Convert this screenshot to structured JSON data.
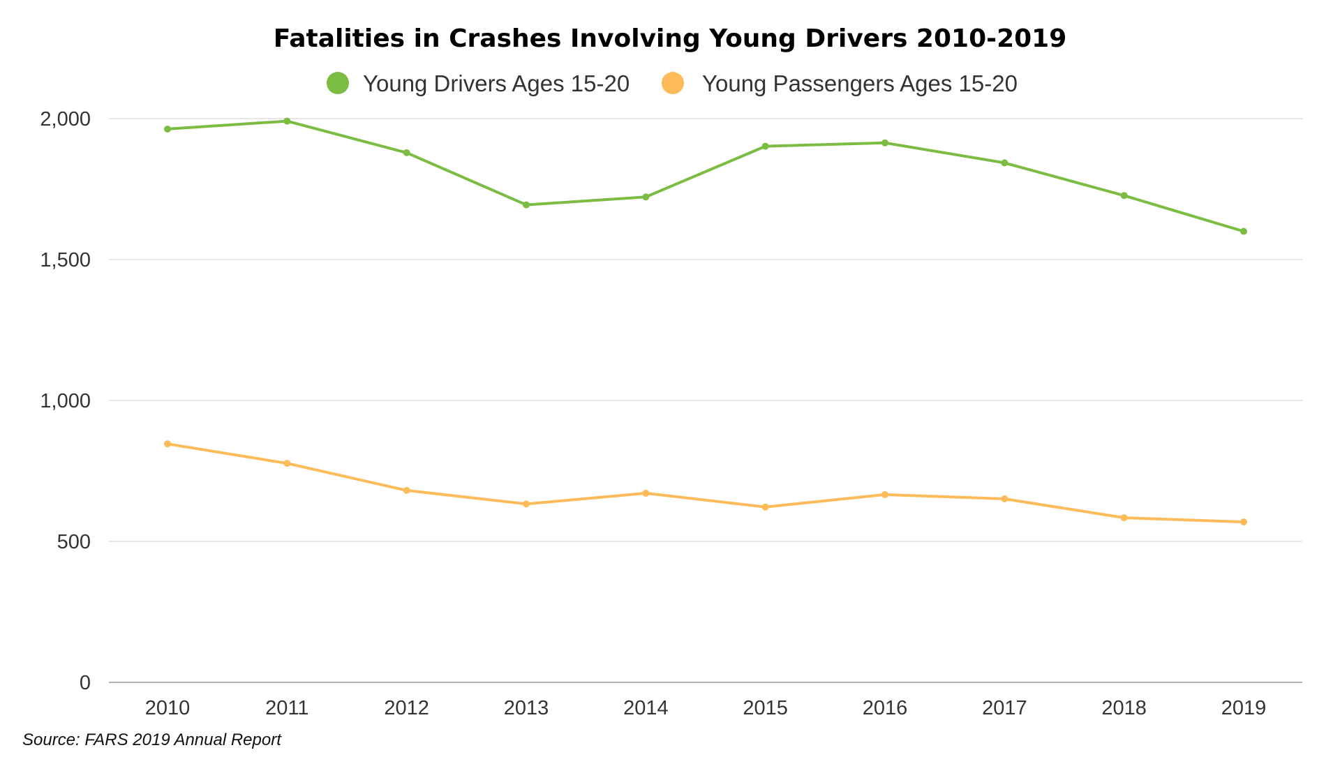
{
  "chart_data": {
    "type": "line",
    "title": "Fatalities in Crashes Involving Young Drivers 2010-2019",
    "xlabel": "",
    "ylabel": "",
    "categories": [
      "2010",
      "2011",
      "2012",
      "2013",
      "2014",
      "2015",
      "2016",
      "2017",
      "2018",
      "2019"
    ],
    "ylim": [
      0,
      2000
    ],
    "yticks": [
      0,
      500,
      1000,
      1500,
      2000
    ],
    "ytick_labels": [
      "0",
      "500",
      "1,000",
      "1,500",
      "2,000"
    ],
    "grid": "horizontal",
    "legend_position": "top-center",
    "series": [
      {
        "name": "Young Drivers Ages 15-20",
        "color": "#7bbd42",
        "values": [
          1963,
          1991,
          1879,
          1694,
          1722,
          1902,
          1914,
          1843,
          1727,
          1600
        ]
      },
      {
        "name": "Young Passengers Ages 15-20",
        "color": "#fdbb5a",
        "values": [
          846,
          777,
          681,
          633,
          671,
          622,
          666,
          651,
          584,
          569
        ]
      }
    ]
  },
  "source": "Source: FARS 2019 Annual Report"
}
